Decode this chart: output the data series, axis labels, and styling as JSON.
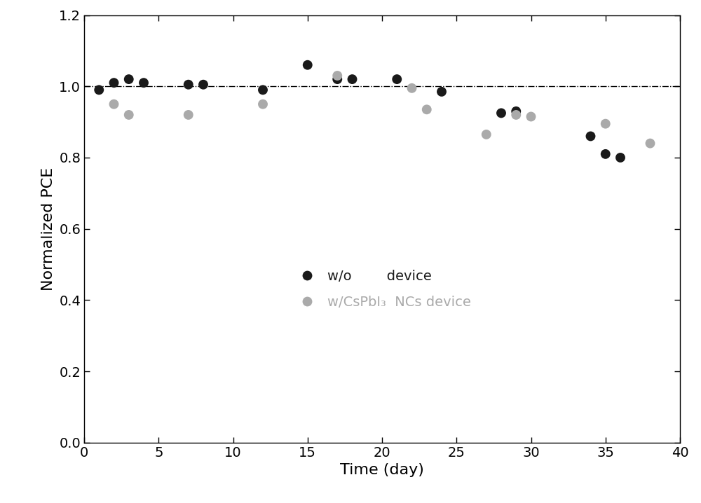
{
  "black_x": [
    1,
    2,
    3,
    4,
    7,
    8,
    12,
    15,
    17,
    18,
    21,
    24,
    28,
    29,
    34,
    35,
    36
  ],
  "black_y": [
    0.99,
    1.01,
    1.02,
    1.01,
    1.005,
    1.005,
    0.99,
    1.06,
    1.02,
    1.02,
    1.02,
    0.985,
    0.925,
    0.93,
    0.86,
    0.81,
    0.8
  ],
  "gray_x": [
    2,
    3,
    7,
    12,
    17,
    22,
    23,
    27,
    29,
    30,
    35,
    38
  ],
  "gray_y": [
    0.95,
    0.92,
    0.92,
    0.95,
    1.03,
    0.995,
    0.935,
    0.865,
    0.92,
    0.915,
    0.895,
    0.84
  ],
  "black_color": "#1a1a1a",
  "gray_color": "#aaaaaa",
  "hline_y": 1.0,
  "xlim": [
    0,
    40
  ],
  "ylim": [
    0.0,
    1.2
  ],
  "xlabel": "Time (day)",
  "ylabel": "Normalized PCE",
  "xticks": [
    0,
    5,
    10,
    15,
    20,
    25,
    30,
    35,
    40
  ],
  "yticks": [
    0.0,
    0.2,
    0.4,
    0.6,
    0.8,
    1.0,
    1.2
  ],
  "marker_size": 100,
  "legend_label_black": "w/o        device",
  "legend_label_gray": "w/CsPbI₃  NCs device",
  "axis_fontsize": 16,
  "tick_fontsize": 14,
  "legend_fontsize": 14
}
